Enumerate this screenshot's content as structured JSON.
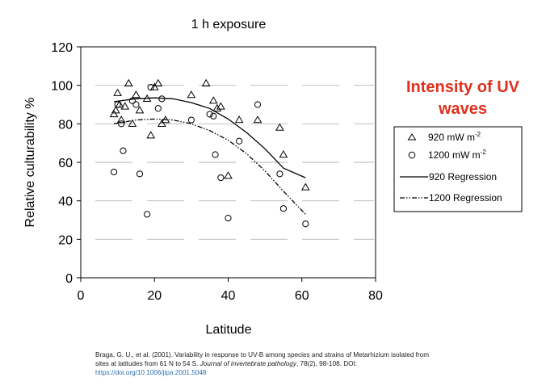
{
  "chart_data": {
    "type": "scatter",
    "title": "1 h exposure",
    "xlabel": "Latitude",
    "ylabel": "Relative culturability %",
    "xlim": [
      0,
      80
    ],
    "ylim": [
      0,
      120
    ],
    "xticks": [
      0,
      20,
      40,
      60,
      80
    ],
    "yticks": [
      0,
      20,
      40,
      60,
      80,
      100,
      120
    ],
    "grid": "dashed horizontal",
    "legend_position": "right",
    "series": [
      {
        "name": "920 mW m⁻²",
        "marker": "triangle",
        "points": [
          [
            9,
            85
          ],
          [
            9.5,
            87
          ],
          [
            10,
            96
          ],
          [
            10.5,
            90
          ],
          [
            11,
            82
          ],
          [
            12,
            89
          ],
          [
            13,
            101
          ],
          [
            14,
            80
          ],
          [
            15,
            95
          ],
          [
            16,
            87
          ],
          [
            18,
            93
          ],
          [
            19,
            74
          ],
          [
            20,
            99
          ],
          [
            21,
            101
          ],
          [
            22,
            80
          ],
          [
            23,
            82
          ],
          [
            30,
            95
          ],
          [
            34,
            101
          ],
          [
            36,
            92
          ],
          [
            37,
            88
          ],
          [
            38,
            89
          ],
          [
            40,
            53
          ],
          [
            43,
            82
          ],
          [
            48,
            82
          ],
          [
            54,
            78
          ],
          [
            55,
            64
          ],
          [
            61,
            47
          ]
        ]
      },
      {
        "name": "1200 mW m⁻²",
        "marker": "circle",
        "points": [
          [
            9,
            55
          ],
          [
            10,
            90
          ],
          [
            11,
            80
          ],
          [
            11.5,
            66
          ],
          [
            14,
            92
          ],
          [
            15,
            90
          ],
          [
            16,
            54
          ],
          [
            18,
            33
          ],
          [
            19,
            99
          ],
          [
            21,
            88
          ],
          [
            22,
            93
          ],
          [
            30,
            82
          ],
          [
            35,
            85
          ],
          [
            36,
            84
          ],
          [
            36.5,
            64
          ],
          [
            38,
            52
          ],
          [
            40,
            31
          ],
          [
            43,
            71
          ],
          [
            48,
            90
          ],
          [
            54,
            54
          ],
          [
            55,
            36
          ],
          [
            61,
            28
          ]
        ]
      }
    ],
    "regressions": [
      {
        "name": "920 Regression",
        "style": "solid",
        "x": [
          9,
          15,
          20,
          25,
          30,
          35,
          40,
          45,
          50,
          55,
          61
        ],
        "y": [
          91.5,
          93,
          93.5,
          93,
          91,
          88,
          82.5,
          75.5,
          67,
          57,
          52
        ]
      },
      {
        "name": "1200 Regression",
        "style": "dash-dot",
        "x": [
          9,
          15,
          20,
          25,
          30,
          35,
          40,
          45,
          50,
          55,
          61
        ],
        "y": [
          80,
          82,
          82.5,
          82,
          80,
          76.5,
          71.5,
          64.5,
          55.5,
          45,
          33
        ]
      }
    ],
    "legend": {
      "items": [
        {
          "label": "920 mW m",
          "sup": "-2",
          "marker": "triangle"
        },
        {
          "label": "1200 mW m",
          "sup": "-2",
          "marker": "circle"
        },
        {
          "label": "920 Regression",
          "marker": "solid-line"
        },
        {
          "label": "1200 Regression",
          "marker": "dash-dot-line"
        }
      ]
    }
  },
  "annotation": {
    "line1": "Intensity of UV",
    "line2": "waves",
    "color": "#e0301e"
  },
  "citation": {
    "text": "Braga, G. U., et al. (2001). Variability in response to UV-B among species and strains of Metarhizium isolated from sites at latitudes from 61 N to 54 S. ",
    "journal": "Journal of invertebrate pathology",
    "tail": ", 78(2), 98-108. DOI: ",
    "doi": "https://doi.org/10.1006/jipa.2001.5048"
  }
}
